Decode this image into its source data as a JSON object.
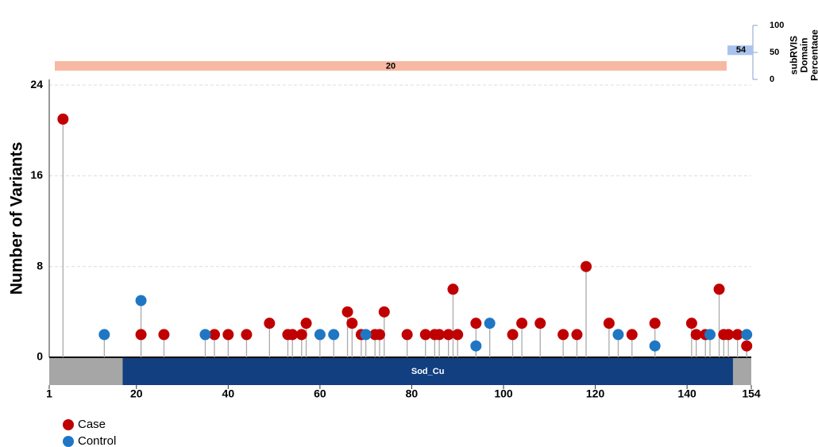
{
  "chart_data": {
    "type": "lollipop",
    "y_label": "Number of Variants",
    "xlim": [
      1,
      154
    ],
    "xticks": [
      1,
      20,
      40,
      60,
      80,
      100,
      120,
      140,
      154
    ],
    "ylim": [
      0,
      24.5
    ],
    "yticks": [
      0,
      8,
      16,
      24
    ],
    "grid": true,
    "legend": "bottom-left",
    "series": [
      {
        "name": "Case",
        "color": "#c00000",
        "x": [
          4,
          21,
          26,
          37,
          40,
          44,
          49,
          53,
          54,
          56,
          57,
          66,
          67,
          69,
          72,
          73,
          74,
          79,
          83,
          85,
          86,
          88,
          89,
          90,
          94,
          102,
          104,
          108,
          113,
          116,
          118,
          123,
          128,
          133,
          141,
          142,
          144,
          147,
          148,
          149,
          151,
          153
        ],
        "values": [
          21,
          2,
          2,
          2,
          2,
          2,
          3,
          2,
          2,
          2,
          3,
          4,
          3,
          2,
          2,
          2,
          4,
          2,
          2,
          2,
          2,
          2,
          6,
          2,
          3,
          2,
          3,
          3,
          2,
          2,
          8,
          3,
          2,
          3,
          3,
          2,
          2,
          6,
          2,
          2,
          2,
          1
        ]
      },
      {
        "name": "Control",
        "color": "#1f77c4",
        "x": [
          13,
          21,
          35,
          60,
          63,
          70,
          94,
          97,
          125,
          133,
          145,
          153
        ],
        "values": [
          2,
          5,
          2,
          2,
          2,
          2,
          1,
          3,
          2,
          1,
          2,
          2
        ]
      }
    ],
    "domains": [
      {
        "name": "Sod_Cu",
        "start": 17,
        "end": 150,
        "color": "#123f80"
      }
    ],
    "region_label": 20,
    "subrvis": {
      "title": "subRVIS Domain Percentage",
      "ylim": [
        0,
        100
      ],
      "yticks": [
        0,
        50,
        100
      ],
      "value": 54
    }
  }
}
